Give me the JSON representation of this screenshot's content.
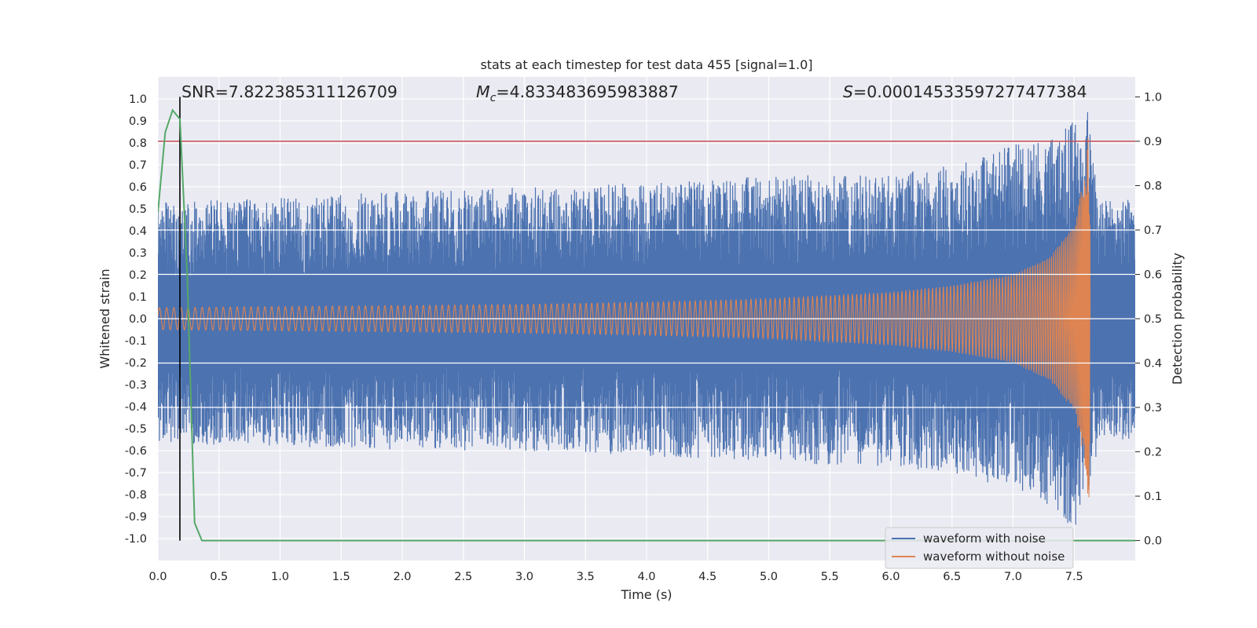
{
  "chart_data": {
    "type": "line",
    "title": "stats at each timestep for test data 455 [signal=1.0]",
    "xlabel": "Time (s)",
    "ylabel": "Whitened strain",
    "y2label": "Detection probability",
    "xlim": [
      0.0,
      8.0
    ],
    "ylim": [
      -1.1,
      1.1
    ],
    "y2lim": [
      -0.045,
      1.045
    ],
    "xticks": [
      0.0,
      0.5,
      1.0,
      1.5,
      2.0,
      2.5,
      3.0,
      3.5,
      4.0,
      4.5,
      5.0,
      5.5,
      6.0,
      6.5,
      7.0,
      7.5
    ],
    "xtick_labels": [
      "0.0",
      "0.5",
      "1.0",
      "1.5",
      "2.0",
      "2.5",
      "3.0",
      "3.5",
      "4.0",
      "4.5",
      "5.0",
      "5.5",
      "6.0",
      "6.5",
      "7.0",
      "7.5"
    ],
    "yticks": [
      1.0,
      0.9,
      0.8,
      0.7,
      0.6,
      0.5,
      0.4,
      0.3,
      0.2,
      0.1,
      0.0,
      -0.1,
      -0.2,
      -0.3,
      -0.4,
      -0.5,
      -0.6,
      -0.7,
      -0.8,
      -0.9,
      -1.0
    ],
    "ytick_labels": [
      "1.0",
      "0.9",
      "0.8",
      "0.7",
      "0.6",
      "0.5",
      "0.4",
      "0.3",
      "0.2",
      "0.1",
      "0.0",
      "-0.1",
      "-0.2",
      "-0.3",
      "-0.4",
      "-0.5",
      "-0.6",
      "-0.7",
      "-0.8",
      "-0.9",
      "-1.0"
    ],
    "y2ticks": [
      1.0,
      0.9,
      0.8,
      0.7,
      0.6,
      0.5,
      0.4,
      0.3,
      0.2,
      0.1,
      0.0
    ],
    "y2tick_labels": [
      "1.0",
      "0.9",
      "0.8",
      "0.7",
      "0.6",
      "0.5",
      "0.4",
      "0.3",
      "0.2",
      "0.1",
      "0.0"
    ],
    "annotations": {
      "snr": "SNR=7.822385311126709",
      "mc_prefix": "M",
      "mc_sub": "c",
      "mc_value": "=4.833483695983887",
      "s_prefix": "S",
      "s_value": "=0.00014533597277477384"
    },
    "threshold_line": {
      "y2": 0.9,
      "color": "#c44e52"
    },
    "detection_time_line": {
      "x": 0.18,
      "color": "#000000"
    },
    "series": [
      {
        "name": "waveform with noise",
        "color": "#4c72b0",
        "kind": "noise",
        "description_envelope": {
          "t": [
            0.0,
            1.0,
            2.0,
            3.0,
            4.0,
            5.0,
            6.0,
            6.5,
            7.0,
            7.3,
            7.5,
            7.6,
            7.7,
            8.0
          ],
          "max": [
            0.53,
            0.55,
            0.58,
            0.6,
            0.62,
            0.65,
            0.66,
            0.7,
            0.8,
            0.82,
            0.9,
            1.0,
            0.55,
            0.55
          ],
          "min": [
            -0.57,
            -0.58,
            -0.6,
            -0.6,
            -0.63,
            -0.65,
            -0.68,
            -0.7,
            -0.78,
            -0.85,
            -0.97,
            -0.9,
            -0.55,
            -0.55
          ]
        }
      },
      {
        "name": "waveform without noise",
        "color": "#dd8452",
        "kind": "chirp",
        "amplitude": {
          "t": [
            0.0,
            1.0,
            2.0,
            3.0,
            4.0,
            5.0,
            6.0,
            6.5,
            7.0,
            7.3,
            7.5,
            7.6,
            7.62,
            7.64,
            8.0
          ],
          "amp": [
            0.05,
            0.055,
            0.06,
            0.065,
            0.075,
            0.09,
            0.12,
            0.15,
            0.2,
            0.28,
            0.42,
            0.7,
            0.88,
            0.0,
            0.0
          ]
        }
      },
      {
        "name": "Detection probability",
        "color": "#55a868",
        "axis": "right",
        "x": [
          0.0,
          0.06,
          0.12,
          0.18,
          0.24,
          0.3,
          0.36,
          0.42,
          8.0
        ],
        "values": [
          0.74,
          0.92,
          0.97,
          0.95,
          0.6,
          0.04,
          0.0,
          0.0,
          0.0
        ]
      }
    ],
    "legend": {
      "location": "lower right",
      "entries": [
        "waveform with noise",
        "waveform without noise"
      ]
    }
  }
}
